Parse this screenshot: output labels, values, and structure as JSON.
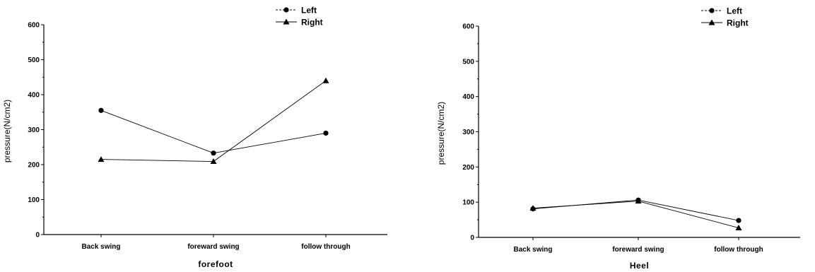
{
  "chart_data": [
    {
      "type": "line",
      "xlabel": "forefoot",
      "ylabel": "pressure(N/cm2)",
      "ylim": [
        0,
        600
      ],
      "yticks": [
        0,
        100,
        200,
        300,
        400,
        500,
        600
      ],
      "categories": [
        "Back swing",
        "foreward swing",
        "follow through"
      ],
      "legend_position": "top-right",
      "grid": false,
      "series": [
        {
          "name": "Left",
          "marker": "circle",
          "values": [
            355,
            233,
            290
          ]
        },
        {
          "name": "Right",
          "marker": "triangle",
          "values": [
            215,
            209,
            440
          ]
        }
      ]
    },
    {
      "type": "line",
      "xlabel": "Heel",
      "ylabel": "pressure(N/cm2)",
      "ylim": [
        0,
        600
      ],
      "yticks": [
        0,
        100,
        200,
        300,
        400,
        500,
        600
      ],
      "categories": [
        "Back swing",
        "foreward swing",
        "follow through"
      ],
      "legend_position": "top-right",
      "grid": false,
      "series": [
        {
          "name": "Left",
          "marker": "circle",
          "values": [
            81,
            106,
            48
          ]
        },
        {
          "name": "Right",
          "marker": "triangle",
          "values": [
            83,
            103,
            27
          ]
        }
      ]
    }
  ]
}
